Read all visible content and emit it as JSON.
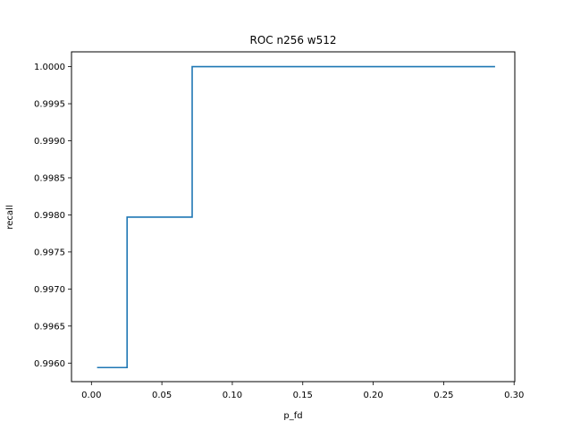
{
  "chart_data": {
    "type": "line",
    "title": "ROC n256  w512",
    "xlabel": "p_fd",
    "ylabel": "recall",
    "xlim": [
      -0.01415,
      0.3005
    ],
    "ylim": [
      0.99575,
      1.0002
    ],
    "x_ticks": [
      {
        "value": 0.0,
        "label": "0.00"
      },
      {
        "value": 0.05,
        "label": "0.05"
      },
      {
        "value": 0.1,
        "label": "0.10"
      },
      {
        "value": 0.15,
        "label": "0.15"
      },
      {
        "value": 0.2,
        "label": "0.20"
      },
      {
        "value": 0.25,
        "label": "0.25"
      },
      {
        "value": 0.3,
        "label": "0.30"
      }
    ],
    "y_ticks": [
      {
        "value": 0.996,
        "label": "0.9960"
      },
      {
        "value": 0.9965,
        "label": "0.9965"
      },
      {
        "value": 0.997,
        "label": "0.9970"
      },
      {
        "value": 0.9975,
        "label": "0.9975"
      },
      {
        "value": 0.998,
        "label": "0.9980"
      },
      {
        "value": 0.9985,
        "label": "0.9985"
      },
      {
        "value": 0.999,
        "label": "0.9990"
      },
      {
        "value": 0.9995,
        "label": "0.9995"
      },
      {
        "value": 1.0,
        "label": "1.0000"
      }
    ],
    "grid": false,
    "series": [
      {
        "color": "#1f77b4",
        "x": [
          0.004,
          0.0253,
          0.0253,
          0.0715,
          0.0715,
          0.2865
        ],
        "y": [
          0.99594,
          0.99594,
          0.99797,
          0.99797,
          1.0,
          1.0
        ]
      }
    ]
  }
}
